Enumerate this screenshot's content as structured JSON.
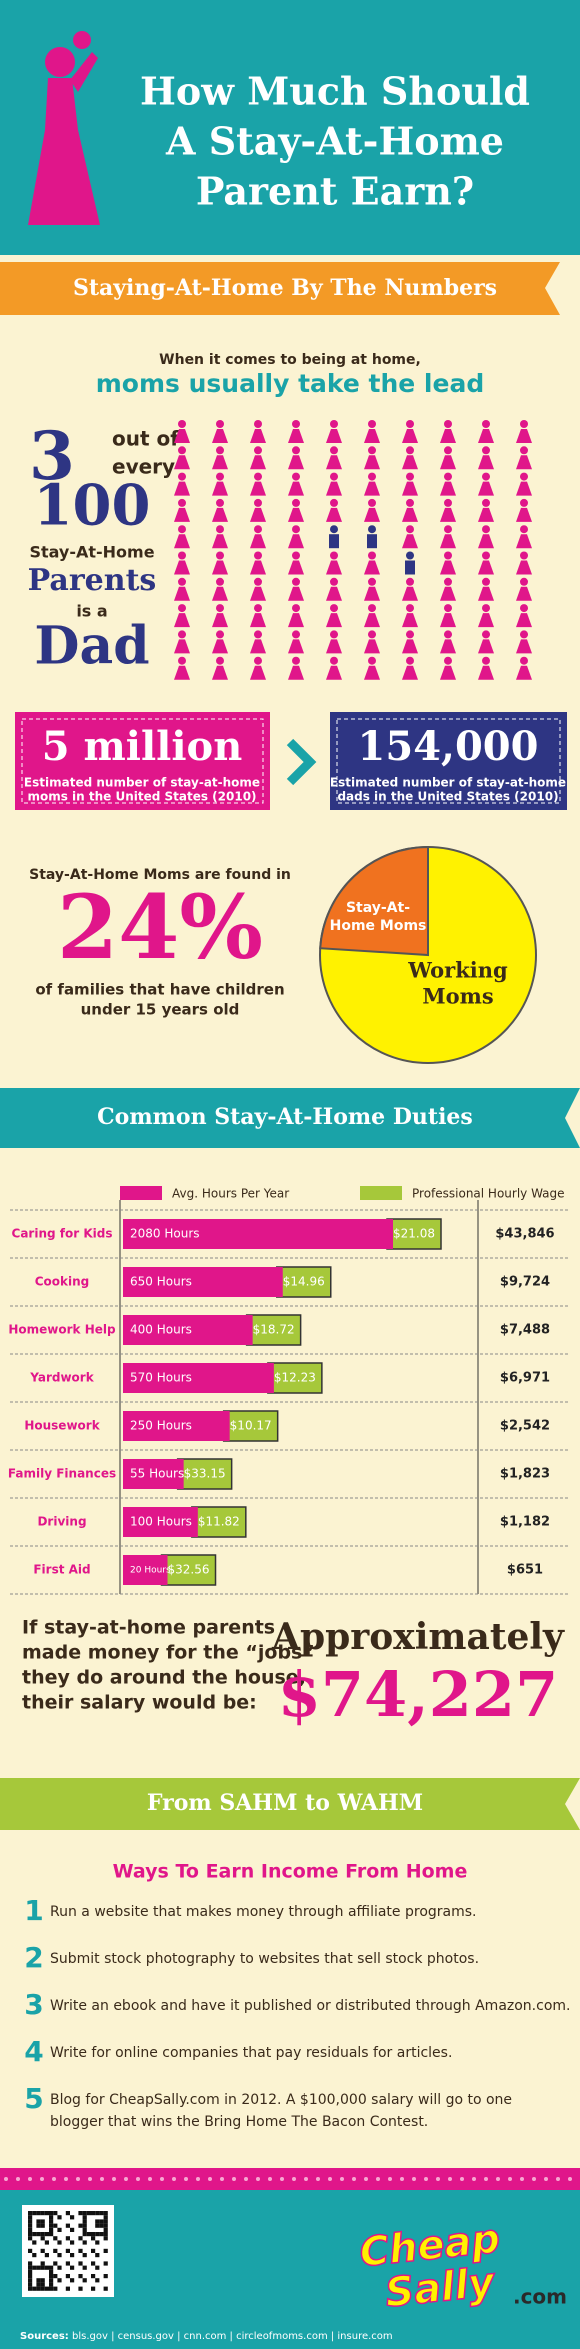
{
  "header": {
    "title_lines": [
      "How Much Should",
      "A Stay-At-Home",
      "Parent Earn?"
    ]
  },
  "numbers": {
    "banner": "Staying-At-Home By The Numbers",
    "intro": "When it comes to being at home,",
    "intro_highlight": "moms usually take the lead",
    "dads": 3,
    "out_of": "out of",
    "every": "every",
    "total": 100,
    "stay_at_home": "Stay-At-Home",
    "parents": "Parents",
    "is_a": "is a",
    "dad": "Dad",
    "moms_count": "5 million",
    "moms_caption": [
      "Estimated number of stay-at-home",
      "moms in the United States (2010)"
    ],
    "dads_count": "154,000",
    "dads_caption": [
      "Estimated number of stay-at-home",
      "dads in the United States (2010)"
    ],
    "families_intro": "Stay-At-Home Moms are found in",
    "families_percent": {
      "value": 24,
      "label": "24%"
    },
    "families_caption": [
      "of families that have children",
      "under 15 years old"
    ],
    "pie_labels": [
      [
        "Stay-At-",
        "Home Moms"
      ],
      [
        "Working",
        "Moms"
      ]
    ]
  },
  "duties": {
    "banner": "Common Stay-At-Home Duties",
    "legend": [
      "Avg. Hours Per Year",
      "Professional Hourly Wage"
    ],
    "rows": [
      {
        "task": "Caring for Kids",
        "hours": 2080,
        "hours_label": "2080 Hours",
        "wage": 21.08,
        "wage_label": "$21.08",
        "salary": "$43,846"
      },
      {
        "task": "Cooking",
        "hours": 650,
        "hours_label": "650 Hours",
        "wage": 14.96,
        "wage_label": "$14.96",
        "salary": "$9,724"
      },
      {
        "task": "Homework Help",
        "hours": 400,
        "hours_label": "400 Hours",
        "wage": 18.72,
        "wage_label": "$18.72",
        "salary": "$7,488"
      },
      {
        "task": "Yardwork",
        "hours": 570,
        "hours_label": "570 Hours",
        "wage": 12.23,
        "wage_label": "$12.23",
        "salary": "$6,971"
      },
      {
        "task": "Housework",
        "hours": 250,
        "hours_label": "250 Hours",
        "wage": 10.17,
        "wage_label": "$10.17",
        "salary": "$2,542"
      },
      {
        "task": "Family Finances",
        "hours": 55,
        "hours_label": "55 Hours",
        "wage": 33.15,
        "wage_label": "$33.15",
        "salary": "$1,823"
      },
      {
        "task": "Driving",
        "hours": 100,
        "hours_label": "100 Hours",
        "wage": 11.82,
        "wage_label": "$11.82",
        "salary": "$1,182"
      },
      {
        "task": "First Aid",
        "hours": 20,
        "hours_label": "20 Hours",
        "wage": 32.56,
        "wage_label": "$32.56",
        "salary": "$651"
      }
    ]
  },
  "total": {
    "lines": [
      "If stay-at-home parents",
      "made money for the “jobs”",
      "they do around the house,",
      "their salary would be:"
    ],
    "approx": "Approximately",
    "amount": "$74,227"
  },
  "wahm": {
    "banner": "From SAHM to WAHM",
    "heading": "Ways To Earn Income From Home",
    "items": [
      {
        "number": "1",
        "lines": [
          "Run a website that makes money through affiliate programs."
        ]
      },
      {
        "number": "2",
        "lines": [
          "Submit stock photography to websites that sell stock photos."
        ]
      },
      {
        "number": "3",
        "lines": [
          "Write an ebook and have it published or distributed through Amazon.com."
        ]
      },
      {
        "number": "4",
        "lines": [
          "Write for online companies that pay residuals for articles."
        ]
      },
      {
        "number": "5",
        "lines": [
          "Blog for CheapSally.com in 2012. A $100,000 salary will go to one",
          "blogger that wins the Bring Home The Bacon Contest."
        ]
      }
    ]
  },
  "footer": {
    "logo": [
      "Cheap",
      "Sally"
    ],
    "logo_suffix": ".com",
    "sources_label": "Sources:",
    "sources": "bls.gov | census.gov | cnn.com | circleofmoms.com | insure.com"
  }
}
